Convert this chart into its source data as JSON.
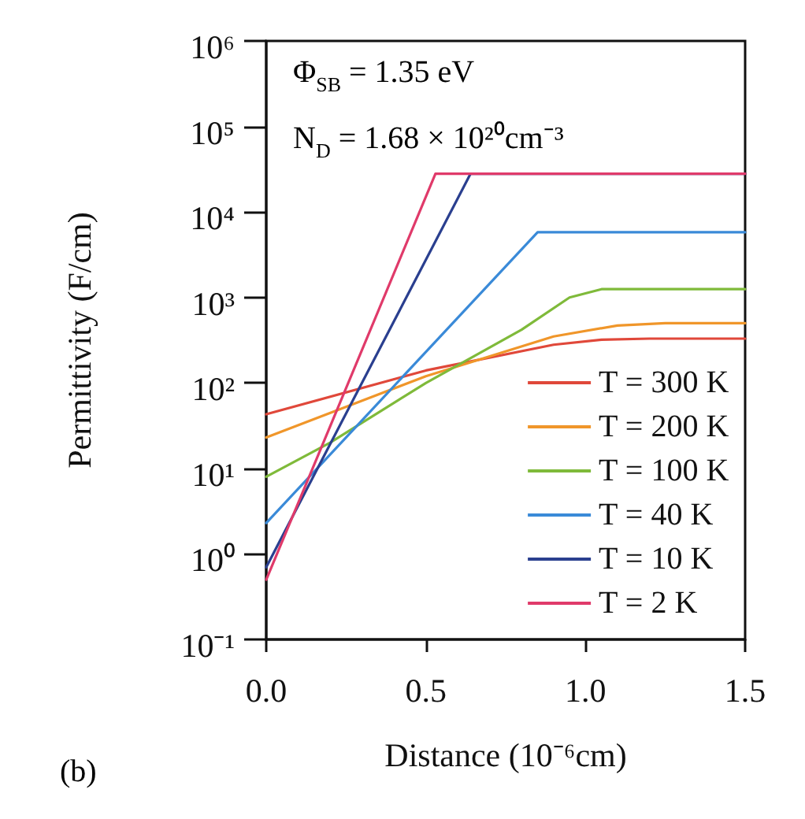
{
  "chart_data": {
    "type": "line",
    "xlabel": "Distance (10⁻⁶cm)",
    "ylabel": "Permittivity (F/cm)",
    "log": true,
    "annotations": [
      "Φ$_{SB}$ = 1.35 eV",
      "N$_{D}$ = 1.68 × 10²⁰cm⁻³",
      "(b)"
    ],
    "xlim": [
      0,
      1.5
    ],
    "xticks": [
      {
        "value": 0,
        "label": "0.0"
      },
      {
        "value": 0.5,
        "label": "0.5"
      },
      {
        "value": 1,
        "label": "1.0"
      },
      {
        "value": 1.5,
        "label": "1.5"
      }
    ],
    "ylim": [
      0.1,
      1000000
    ],
    "yticks": [
      {
        "value": 0.1,
        "label": "10⁻¹"
      },
      {
        "value": 1,
        "label": "10⁰"
      },
      {
        "value": 10,
        "label": "10¹"
      },
      {
        "value": 100,
        "label": "10²"
      },
      {
        "value": 1000,
        "label": "10³"
      },
      {
        "value": 10000,
        "label": "10⁴"
      },
      {
        "value": 100000,
        "label": "10⁵"
      },
      {
        "value": 1000000,
        "label": "10⁶"
      }
    ],
    "grid": false,
    "legend": "bottom right",
    "marker": "none",
    "line_style": "solid",
    "series": [
      {
        "name": "T = 300 K",
        "color": "#e0483a",
        "x": [
          0,
          0.5,
          0.9,
          1.05,
          1.2,
          1.5
        ],
        "values": [
          43,
          140,
          280,
          320,
          330,
          330
        ]
      },
      {
        "name": "T = 200 K",
        "color": "#f0962a",
        "x": [
          0,
          0.5,
          0.9,
          1.1,
          1.25,
          1.5
        ],
        "values": [
          23,
          120,
          350,
          470,
          500,
          500
        ]
      },
      {
        "name": "T = 100 K",
        "color": "#7fba3a",
        "x": [
          0,
          0.2,
          0.5,
          0.8,
          0.95,
          1.05,
          1.5
        ],
        "values": [
          8,
          20,
          100,
          420,
          1000,
          1250,
          1250
        ]
      },
      {
        "name": "T = 40 K",
        "color": "#3a8ad8",
        "x": [
          0,
          0.85,
          1.5
        ],
        "values": [
          2.3,
          5800,
          5800
        ]
      },
      {
        "name": "T = 10 K",
        "color": "#2a3f8f",
        "x": [
          0,
          0.64,
          1.5
        ],
        "values": [
          0.7,
          28000,
          28000
        ]
      },
      {
        "name": "T = 2 K",
        "color": "#e03a6a",
        "x": [
          0,
          0.53,
          1.5
        ],
        "values": [
          0.5,
          28000,
          28000
        ]
      }
    ]
  }
}
